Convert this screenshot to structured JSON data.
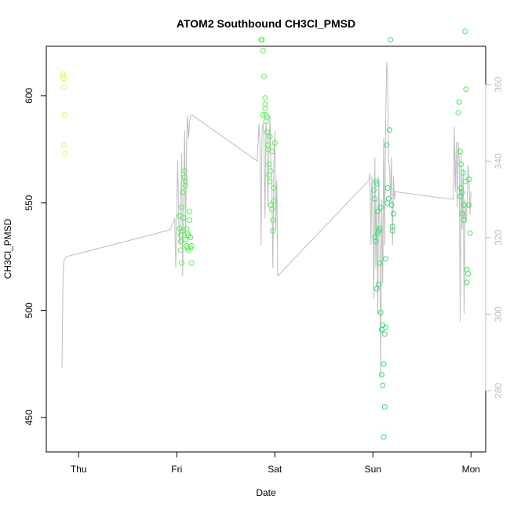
{
  "chart_data": {
    "type": "scatter",
    "title": "ATOM2 Southbound CH3Cl_PMSD",
    "xlabel": "Date",
    "ylabel": "CH3Cl_PMSD",
    "x_ticks": [
      {
        "label": "Thu",
        "value": 0.0
      },
      {
        "label": "Fri",
        "value": 1.0
      },
      {
        "label": "Sat",
        "value": 2.0
      },
      {
        "label": "Sun",
        "value": 3.0
      },
      {
        "label": "Mon",
        "value": 4.0
      }
    ],
    "xlim": [
      -0.33,
      4.15
    ],
    "ylim": [
      434,
      623
    ],
    "y_ticks": [
      450,
      500,
      550,
      600
    ],
    "y2_ticks": [
      280,
      300,
      320,
      340,
      360
    ],
    "y2lim": [
      264,
      370
    ],
    "grid": false,
    "legend": "none",
    "colors": {
      "thursday_points": "#d9ff4d",
      "friday_points": "#55f055",
      "sunday_points": "#2fe070",
      "monday_points": "#40e860",
      "secondary_line": "#bebebe"
    },
    "series": [
      {
        "color_key": "thursday_points",
        "marker": "circle-open",
        "x": [
          -0.16,
          -0.15,
          -0.15,
          -0.14,
          -0.15,
          -0.14,
          -0.16
        ],
        "y": [
          610,
          608,
          604,
          591,
          577,
          573,
          609
        ]
      },
      {
        "color_key": "friday_points",
        "marker": "circle-open",
        "x": [
          1.03,
          1.04,
          1.04,
          1.05,
          1.05,
          1.06,
          1.07,
          1.08,
          1.08,
          1.09,
          1.09,
          1.1,
          1.1,
          1.11,
          1.12,
          1.12,
          1.13,
          1.13,
          1.14,
          1.14,
          1.15,
          1.15,
          1.04,
          1.03,
          1.06,
          1.07,
          1.11,
          1.09
        ],
        "y": [
          544,
          535,
          528,
          522,
          548,
          555,
          543,
          562,
          565,
          560,
          558,
          538,
          530,
          529,
          528,
          535,
          542,
          546,
          534,
          529,
          530,
          522,
          532,
          538,
          537,
          543,
          536,
          533
        ]
      },
      {
        "color_key": "friday_points",
        "marker": "circle-open",
        "x": [
          1.86,
          1.87,
          1.88,
          1.89,
          1.9,
          1.9,
          1.91,
          1.91,
          1.92,
          1.93,
          1.93,
          1.94,
          1.94,
          1.95,
          1.96,
          1.96,
          1.97,
          1.98,
          1.98,
          1.99,
          1.99,
          2.0,
          1.88,
          1.9,
          1.92,
          1.95,
          1.97
        ],
        "y": [
          626,
          626,
          621,
          609,
          599,
          596,
          591,
          588,
          583,
          577,
          575,
          568,
          563,
          560,
          565,
          549,
          547,
          542,
          537,
          551,
          557,
          578,
          591,
          594,
          590,
          581,
          574
        ]
      },
      {
        "color_key": "sunday_points",
        "marker": "circle-open",
        "x": [
          3.01,
          3.02,
          3.02,
          3.03,
          3.04,
          3.04,
          3.05,
          3.05,
          3.06,
          3.06,
          3.07,
          3.08,
          3.08,
          3.09,
          3.09,
          3.1,
          3.11,
          3.11,
          3.12,
          3.12,
          3.13,
          3.13,
          3.14,
          3.15,
          3.15,
          3.16,
          3.17,
          3.18,
          3.19,
          3.2,
          3.2,
          3.21,
          3.03,
          3.07,
          3.1
        ],
        "y": [
          556,
          552,
          534,
          532,
          559,
          510,
          546,
          536,
          537,
          512,
          522,
          548,
          499,
          470,
          491,
          465,
          475,
          441,
          455,
          489,
          492,
          524,
          577,
          550,
          557,
          552,
          584,
          626,
          549,
          537,
          539,
          545,
          560,
          538,
          493
        ]
      },
      {
        "color_key": "monday_points",
        "marker": "circle-open",
        "x": [
          3.87,
          3.88,
          3.89,
          3.9,
          3.9,
          3.91,
          3.92,
          3.93,
          3.93,
          3.94,
          3.95,
          3.96,
          3.96,
          3.97,
          3.98,
          3.98,
          3.99,
          3.89,
          3.91,
          3.94
        ],
        "y": [
          592,
          597,
          574,
          568,
          557,
          555,
          564,
          549,
          542,
          630,
          603,
          519,
          513,
          517,
          549,
          561,
          536,
          553,
          545,
          560
        ]
      }
    ],
    "secondary_series": {
      "color_key": "secondary_line",
      "axis": "right",
      "x": [
        -0.17,
        -0.16,
        -0.15,
        -0.13,
        0.93,
        0.98,
        0.99,
        1.0,
        1.01,
        1.02,
        1.03,
        1.04,
        1.05,
        1.06,
        1.07,
        1.08,
        1.09,
        1.1,
        1.11,
        1.12,
        1.13,
        1.14,
        1.15,
        1.16,
        1.82,
        1.83,
        1.84,
        1.85,
        1.86,
        1.87,
        1.88,
        1.89,
        1.9,
        1.91,
        1.92,
        1.93,
        1.94,
        1.95,
        1.96,
        1.97,
        1.98,
        1.99,
        2.0,
        2.01,
        2.02,
        2.03,
        2.96,
        2.97,
        2.98,
        2.99,
        3.0,
        3.01,
        3.02,
        3.03,
        3.04,
        3.05,
        3.06,
        3.07,
        3.08,
        3.09,
        3.1,
        3.11,
        3.12,
        3.13,
        3.14,
        3.15,
        3.16,
        3.17,
        3.18,
        3.19,
        3.2,
        3.21,
        3.22,
        3.23,
        3.82,
        3.83,
        3.84,
        3.85,
        3.86,
        3.87,
        3.88,
        3.89,
        3.9,
        3.91,
        3.92,
        3.93,
        3.94,
        3.95,
        3.96,
        3.97,
        3.98,
        3.99,
        4.0
      ],
      "y": [
        286,
        310,
        314,
        315,
        322,
        325,
        312,
        330,
        340,
        325,
        318,
        326,
        342,
        310,
        330,
        348,
        320,
        345,
        352,
        346,
        350,
        352,
        352,
        352,
        340,
        345,
        350,
        343,
        318,
        348,
        350,
        345,
        325,
        350,
        347,
        328,
        342,
        352,
        340,
        333,
        312,
        338,
        348,
        322,
        335,
        310,
        335,
        337,
        318,
        336,
        327,
        304,
        341,
        312,
        330,
        300,
        336,
        324,
        284,
        330,
        308,
        346,
        318,
        350,
        366,
        362,
        340,
        338,
        330,
        341,
        318,
        336,
        330,
        332,
        330,
        349,
        332,
        345,
        328,
        345,
        340,
        298,
        342,
        322,
        338,
        300,
        330,
        324,
        328,
        339,
        336,
        326,
        332
      ]
    }
  }
}
